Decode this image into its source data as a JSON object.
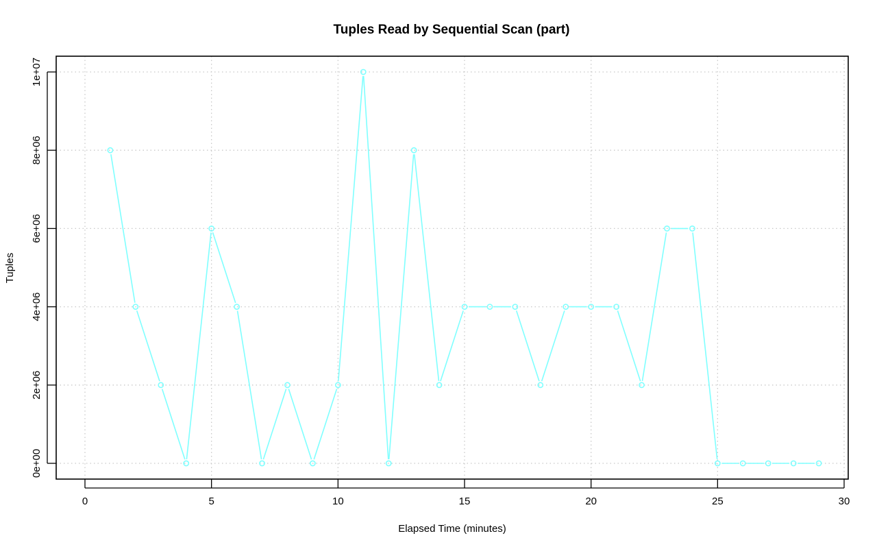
{
  "chart_data": {
    "type": "line",
    "title": "Tuples Read by Sequential Scan (part)",
    "xlabel": "Elapsed Time (minutes)",
    "ylabel": "Tuples",
    "xlim": [
      0,
      30
    ],
    "ylim": [
      0,
      10000000
    ],
    "x_ticks": [
      0,
      5,
      10,
      15,
      20,
      25,
      30
    ],
    "x_tick_labels": [
      "0",
      "5",
      "10",
      "15",
      "20",
      "25",
      "30"
    ],
    "y_ticks": [
      0,
      2000000,
      4000000,
      6000000,
      8000000,
      10000000
    ],
    "y_tick_labels": [
      "0e+00",
      "2e+06",
      "4e+06",
      "6e+06",
      "8e+06",
      "1e+07"
    ],
    "grid": true,
    "series": [
      {
        "color": "#7fffff",
        "marker": "open-circle",
        "x": [
          1,
          2,
          3,
          4,
          5,
          6,
          7,
          8,
          9,
          10,
          11,
          12,
          13,
          14,
          15,
          16,
          17,
          18,
          19,
          20,
          21,
          22,
          23,
          24,
          25,
          26,
          27,
          28,
          29
        ],
        "y": [
          8000000,
          4000000,
          2000000,
          0,
          6000000,
          4000000,
          0,
          2000000,
          0,
          2000000,
          10000000,
          0,
          8000000,
          2000000,
          4000000,
          4000000,
          4000000,
          2000000,
          4000000,
          4000000,
          4000000,
          2000000,
          6000000,
          6000000,
          0,
          0,
          0,
          0,
          0
        ]
      }
    ]
  }
}
